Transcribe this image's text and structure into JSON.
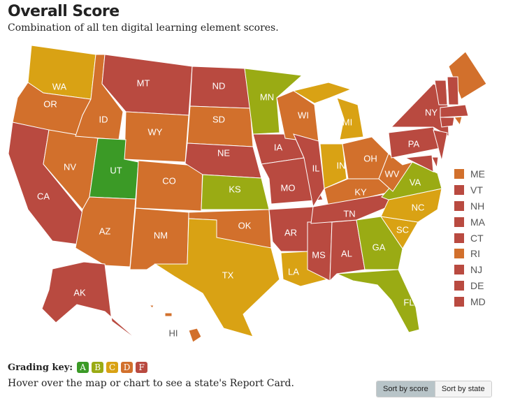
{
  "title": "Overall Score",
  "subtitle": "Combination of all ten digital learning element scores.",
  "grade_colors": {
    "A": "#3b9a26",
    "B": "#9aab14",
    "C": "#d9a214",
    "D": "#d2702c",
    "F": "#b94a40"
  },
  "states": [
    {
      "code": "WA",
      "grade": "C"
    },
    {
      "code": "OR",
      "grade": "D"
    },
    {
      "code": "CA",
      "grade": "F"
    },
    {
      "code": "NV",
      "grade": "D"
    },
    {
      "code": "ID",
      "grade": "D"
    },
    {
      "code": "MT",
      "grade": "F"
    },
    {
      "code": "WY",
      "grade": "D"
    },
    {
      "code": "UT",
      "grade": "A"
    },
    {
      "code": "AZ",
      "grade": "D"
    },
    {
      "code": "CO",
      "grade": "D"
    },
    {
      "code": "NM",
      "grade": "D"
    },
    {
      "code": "ND",
      "grade": "F"
    },
    {
      "code": "SD",
      "grade": "D"
    },
    {
      "code": "NE",
      "grade": "F"
    },
    {
      "code": "KS",
      "grade": "B"
    },
    {
      "code": "OK",
      "grade": "D"
    },
    {
      "code": "TX",
      "grade": "C"
    },
    {
      "code": "MN",
      "grade": "B"
    },
    {
      "code": "IA",
      "grade": "F"
    },
    {
      "code": "MO",
      "grade": "F"
    },
    {
      "code": "AR",
      "grade": "F"
    },
    {
      "code": "LA",
      "grade": "C"
    },
    {
      "code": "WI",
      "grade": "D"
    },
    {
      "code": "IL",
      "grade": "F"
    },
    {
      "code": "MI",
      "grade": "C"
    },
    {
      "code": "IN",
      "grade": "C"
    },
    {
      "code": "OH",
      "grade": "D"
    },
    {
      "code": "KY",
      "grade": "D"
    },
    {
      "code": "TN",
      "grade": "F"
    },
    {
      "code": "MS",
      "grade": "F"
    },
    {
      "code": "AL",
      "grade": "F"
    },
    {
      "code": "GA",
      "grade": "B"
    },
    {
      "code": "FL",
      "grade": "B"
    },
    {
      "code": "SC",
      "grade": "C"
    },
    {
      "code": "NC",
      "grade": "C"
    },
    {
      "code": "VA",
      "grade": "B"
    },
    {
      "code": "WV",
      "grade": "D"
    },
    {
      "code": "PA",
      "grade": "F"
    },
    {
      "code": "NY",
      "grade": "F"
    },
    {
      "code": "ME",
      "grade": "D"
    },
    {
      "code": "VT",
      "grade": "F"
    },
    {
      "code": "NH",
      "grade": "F"
    },
    {
      "code": "MA",
      "grade": "F"
    },
    {
      "code": "CT",
      "grade": "F"
    },
    {
      "code": "RI",
      "grade": "D"
    },
    {
      "code": "NJ",
      "grade": "F"
    },
    {
      "code": "DE",
      "grade": "F"
    },
    {
      "code": "MD",
      "grade": "F"
    },
    {
      "code": "AK",
      "grade": "F"
    },
    {
      "code": "HI",
      "grade": "D"
    }
  ],
  "small_states_legend": [
    {
      "code": "ME",
      "grade": "D"
    },
    {
      "code": "VT",
      "grade": "F"
    },
    {
      "code": "NH",
      "grade": "F"
    },
    {
      "code": "MA",
      "grade": "F"
    },
    {
      "code": "CT",
      "grade": "F"
    },
    {
      "code": "RI",
      "grade": "D"
    },
    {
      "code": "NJ",
      "grade": "F"
    },
    {
      "code": "DE",
      "grade": "F"
    },
    {
      "code": "MD",
      "grade": "F"
    }
  ],
  "grading_key": {
    "label": "Grading key:",
    "grades": [
      "A",
      "B",
      "C",
      "D",
      "F"
    ]
  },
  "hint": "Hover over the map or chart to see a state's Report Card.",
  "sort": {
    "by_score": "Sort by score",
    "by_state": "Sort by state",
    "active": "by_score"
  }
}
